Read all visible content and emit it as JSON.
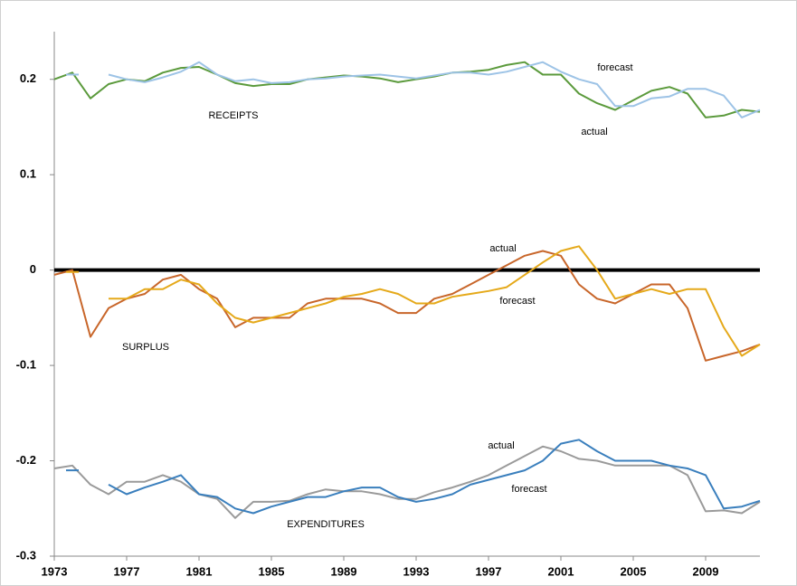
{
  "chart_data": {
    "type": "line",
    "x": [
      1973,
      1974,
      1975,
      1976,
      1977,
      1978,
      1979,
      1980,
      1981,
      1982,
      1983,
      1984,
      1985,
      1986,
      1987,
      1988,
      1989,
      1990,
      1991,
      1992,
      1993,
      1994,
      1995,
      1996,
      1997,
      1998,
      1999,
      2000,
      2001,
      2002,
      2003,
      2004,
      2005,
      2006,
      2007,
      2008,
      2009,
      2010,
      2011,
      2012
    ],
    "xlim": [
      1973,
      2012
    ],
    "xticks": [
      1973,
      1977,
      1981,
      1985,
      1989,
      1993,
      1997,
      2001,
      2005,
      2009
    ],
    "ylim": [
      -0.3,
      0.25
    ],
    "yticks": [
      -0.3,
      -0.2,
      -0.1,
      0,
      0.1,
      0.2
    ],
    "series": [
      {
        "color": "#5b9a3c",
        "values": [
          0.2,
          0.207,
          0.18,
          0.195,
          0.2,
          0.198,
          0.207,
          0.212,
          0.213,
          0.205,
          0.196,
          0.193,
          0.195,
          0.195,
          0.2,
          0.202,
          0.204,
          0.203,
          0.201,
          0.197,
          0.2,
          0.203,
          0.207,
          0.208,
          0.21,
          0.215,
          0.218,
          0.205,
          0.205,
          0.185,
          0.175,
          0.168,
          0.178,
          0.188,
          0.192,
          0.185,
          0.16,
          0.162,
          0.168,
          0.166
        ]
      },
      {
        "color": "#9dc3e6",
        "values": [
          null,
          0.205,
          null,
          0.205,
          0.2,
          0.197,
          0.202,
          0.208,
          0.218,
          0.205,
          0.198,
          0.2,
          0.196,
          0.197,
          0.2,
          0.201,
          0.203,
          0.204,
          0.205,
          0.203,
          0.201,
          0.204,
          0.207,
          0.207,
          0.205,
          0.208,
          0.213,
          0.218,
          0.208,
          0.2,
          0.195,
          0.172,
          0.172,
          0.18,
          0.182,
          0.19,
          0.19,
          0.183,
          0.16,
          0.168
        ]
      },
      {
        "color": "#c8662a",
        "values": [
          -0.005,
          0,
          -0.07,
          -0.04,
          -0.03,
          -0.025,
          -0.01,
          -0.005,
          -0.02,
          -0.03,
          -0.06,
          -0.05,
          -0.05,
          -0.05,
          -0.035,
          -0.03,
          -0.03,
          -0.03,
          -0.035,
          -0.045,
          -0.045,
          -0.03,
          -0.025,
          -0.015,
          -0.005,
          0.005,
          0.015,
          0.02,
          0.015,
          -0.015,
          -0.03,
          -0.035,
          -0.025,
          -0.015,
          -0.015,
          -0.04,
          -0.095,
          -0.09,
          -0.085,
          -0.078
        ]
      },
      {
        "color": "#e5a91a",
        "values": [
          null,
          -0.002,
          null,
          -0.03,
          -0.03,
          -0.02,
          -0.02,
          -0.01,
          -0.015,
          -0.035,
          -0.05,
          -0.055,
          -0.05,
          -0.045,
          -0.04,
          -0.035,
          -0.028,
          -0.025,
          -0.02,
          -0.025,
          -0.035,
          -0.035,
          -0.028,
          -0.025,
          -0.022,
          -0.018,
          -0.005,
          0.008,
          0.02,
          0.025,
          0,
          -0.03,
          -0.025,
          -0.02,
          -0.025,
          -0.02,
          -0.02,
          -0.06,
          -0.09,
          -0.078
        ]
      },
      {
        "color": "#9a9a9a",
        "values": [
          -0.208,
          -0.205,
          -0.225,
          -0.235,
          -0.222,
          -0.222,
          -0.215,
          -0.222,
          -0.235,
          -0.24,
          -0.26,
          -0.243,
          -0.243,
          -0.242,
          -0.235,
          -0.23,
          -0.232,
          -0.232,
          -0.235,
          -0.24,
          -0.24,
          -0.233,
          -0.228,
          -0.222,
          -0.215,
          -0.205,
          -0.195,
          -0.185,
          -0.19,
          -0.198,
          -0.2,
          -0.205,
          -0.205,
          -0.205,
          -0.205,
          -0.215,
          -0.253,
          -0.252,
          -0.255,
          -0.243
        ]
      },
      {
        "color": "#3a7fbd",
        "values": [
          null,
          -0.21,
          null,
          -0.225,
          -0.235,
          -0.228,
          -0.222,
          -0.215,
          -0.235,
          -0.238,
          -0.25,
          -0.255,
          -0.248,
          -0.243,
          -0.238,
          -0.238,
          -0.232,
          -0.228,
          -0.228,
          -0.238,
          -0.243,
          -0.24,
          -0.235,
          -0.225,
          -0.22,
          -0.215,
          -0.21,
          -0.2,
          -0.182,
          -0.178,
          -0.19,
          -0.2,
          -0.2,
          -0.2,
          -0.205,
          -0.208,
          -0.215,
          -0.25,
          -0.248,
          -0.242
        ]
      }
    ],
    "annotations": [
      "forecast",
      "actual",
      "RECEIPTS",
      "actual",
      "forecast",
      "SURPLUS",
      "actual",
      "forecast",
      "EXPENDITURES"
    ]
  }
}
